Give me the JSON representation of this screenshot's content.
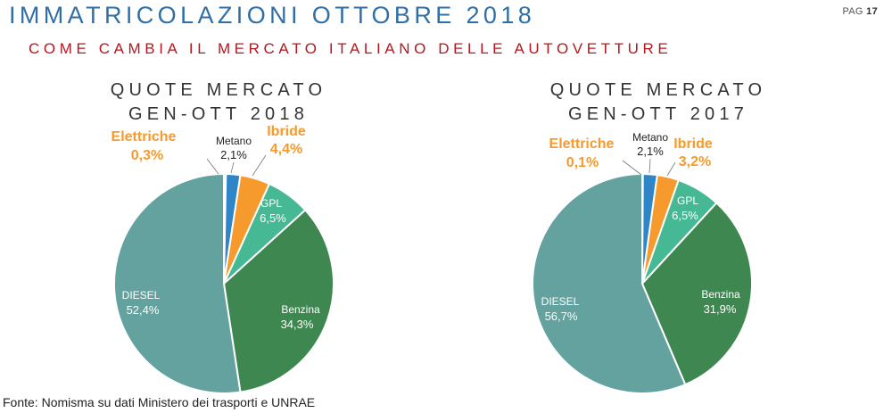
{
  "header": {
    "title": "IMMATRICOLAZIONI OTTOBRE 2018",
    "page_label": "PAG",
    "page_number": "17",
    "subtitle": "COME CAMBIA IL MERCATO ITALIANO DELLE AUTOVETTURE"
  },
  "colors": {
    "Elettriche": "#ffffff",
    "Metano": "#2e86c8",
    "Ibride": "#f79a2e",
    "GPL": "#46b894",
    "Benzina": "#3f8750",
    "DIESEL": "#63a29e",
    "highlight": "#f79a2e"
  },
  "chart_data": [
    {
      "type": "pie",
      "title_lines": [
        "QUOTE MERCATO",
        "GEN-OTT 2018"
      ],
      "slices": [
        {
          "label": "Elettriche",
          "value": 0.3,
          "value_label": "0,3%"
        },
        {
          "label": "Metano",
          "value": 2.1,
          "value_label": "2,1%"
        },
        {
          "label": "Ibride",
          "value": 4.4,
          "value_label": "4,4%"
        },
        {
          "label": "GPL",
          "value": 6.5,
          "value_label": "6,5%"
        },
        {
          "label": "Benzina",
          "value": 34.3,
          "value_label": "34,3%"
        },
        {
          "label": "DIESEL",
          "value": 52.4,
          "value_label": "52,4%"
        }
      ]
    },
    {
      "type": "pie",
      "title_lines": [
        "QUOTE MERCATO",
        "GEN-OTT 2017"
      ],
      "slices": [
        {
          "label": "Elettriche",
          "value": 0.1,
          "value_label": "0,1%"
        },
        {
          "label": "Metano",
          "value": 2.1,
          "value_label": "2,1%"
        },
        {
          "label": "Ibride",
          "value": 3.2,
          "value_label": "3,2%"
        },
        {
          "label": "GPL",
          "value": 6.5,
          "value_label": "6,5%"
        },
        {
          "label": "Benzina",
          "value": 31.9,
          "value_label": "31,9%"
        },
        {
          "label": "DIESEL",
          "value": 56.7,
          "value_label": "56,7%"
        }
      ]
    }
  ],
  "footer": {
    "source": "Fonte: Nomisma su dati Ministero dei trasporti e UNRAE"
  }
}
